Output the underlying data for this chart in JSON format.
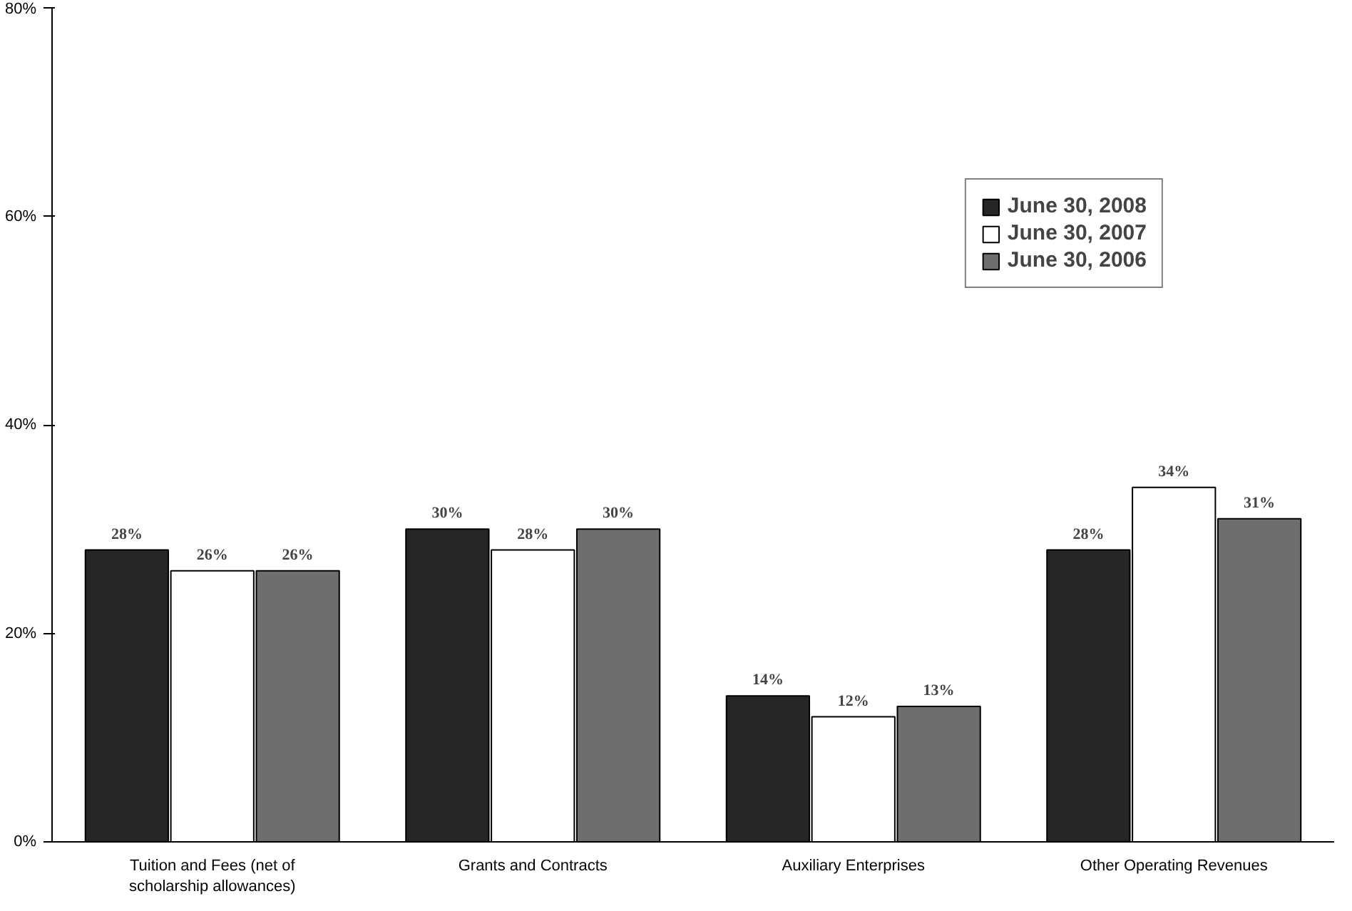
{
  "chart_data": {
    "type": "bar",
    "categories": [
      "Tuition and Fees (net of\nscholarship allowances)",
      "Grants and Contracts",
      "Auxiliary Enterprises",
      "Other Operating Revenues"
    ],
    "series": [
      {
        "name": "June 30, 2008",
        "color": "#262626",
        "values": [
          28,
          30,
          14,
          28
        ],
        "value_labels": [
          "28%",
          "30%",
          "14%",
          "28%"
        ]
      },
      {
        "name": "June 30, 2007",
        "color": "#ffffff",
        "values": [
          26,
          28,
          12,
          34
        ],
        "value_labels": [
          "26%",
          "28%",
          "12%",
          "34%"
        ]
      },
      {
        "name": "June 30, 2006",
        "color": "#6e6e6e",
        "values": [
          26,
          30,
          13,
          31
        ],
        "value_labels": [
          "26%",
          "30%",
          "13%",
          "31%"
        ]
      }
    ],
    "ylim": [
      0,
      80
    ],
    "yticks": [
      {
        "value": 0,
        "label": "0%"
      },
      {
        "value": 20,
        "label": "20%"
      },
      {
        "value": 40,
        "label": "40%"
      },
      {
        "value": 60,
        "label": "60%"
      },
      {
        "value": 80,
        "label": "80%"
      }
    ],
    "grid": false,
    "legend": "top right"
  }
}
